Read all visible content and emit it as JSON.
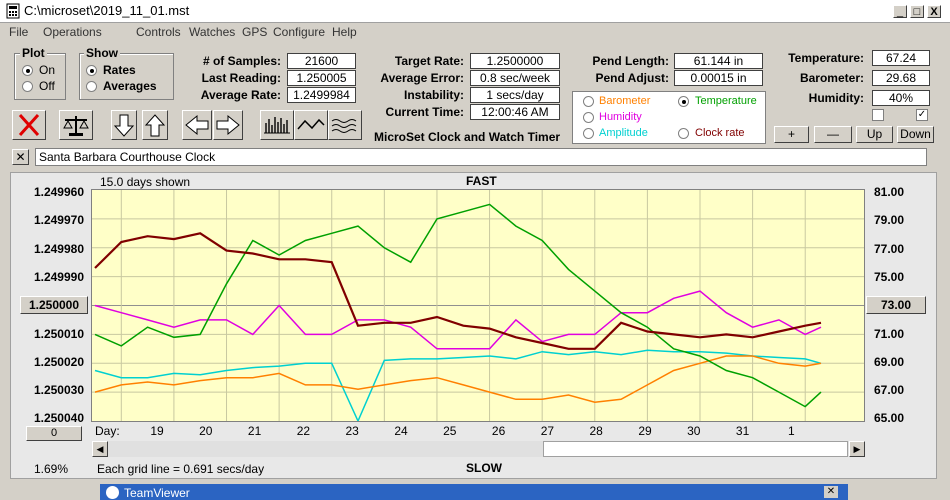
{
  "window": {
    "title": "C:\\microset\\2019_11_01.mst",
    "minimize": "_",
    "maximize": "□",
    "close": "X"
  },
  "menu": [
    "File",
    "Operations",
    "Controls",
    "Watches",
    "GPS",
    "Configure",
    "Help"
  ],
  "plot_group": {
    "title": "Plot",
    "options": [
      "On",
      "Off"
    ],
    "selected": "On"
  },
  "show_group": {
    "title": "Show",
    "options": [
      "Rates",
      "Averages"
    ],
    "selected": "Rates"
  },
  "stats": {
    "samples_label": "# of Samples:",
    "samples": "21600",
    "last_label": "Last Reading:",
    "last": "1.250005",
    "avg_label": "Average Rate:",
    "avg": "1.2499984"
  },
  "target": {
    "target_label": "Target Rate:",
    "target": "1.2500000",
    "error_label": "Average Error:",
    "error": "0.8 sec/week",
    "instab_label": "Instability:",
    "instab": "1 secs/day",
    "time_label": "Current Time:",
    "time": "12:00:46 AM",
    "caption": "MicroSet Clock and Watch Timer"
  },
  "pendulum": {
    "length_label": "Pend Length:",
    "length": "61.144 in",
    "adjust_label": "Pend Adjust:",
    "adjust": "0.00015 in"
  },
  "channels": [
    {
      "name": "Barometer",
      "color": "#ff8000",
      "selected": false
    },
    {
      "name": "Temperature",
      "color": "#00a000",
      "selected": true
    },
    {
      "name": "Humidity",
      "color": "#e000e0",
      "selected": false
    },
    {
      "name": "Amplitude",
      "color": "#00d0d0",
      "selected": false
    },
    {
      "name": "Clock rate",
      "color": "#800000",
      "selected": false
    }
  ],
  "environment": {
    "temp_label": "Temperature:",
    "temp": "67.24",
    "baro_label": "Barometer:",
    "baro": "29.68",
    "hum_label": "Humidity:",
    "hum": "40%",
    "plus": "+",
    "minus": "—",
    "up": "Up",
    "down": "Down",
    "check1": false,
    "check2": true
  },
  "clock_name": "Santa Barbara Courthouse Clock",
  "chart": {
    "days_shown": "15.0 days shown",
    "top_label": "FAST",
    "bottom_label": "SLOW",
    "grid_caption": "Each grid line = 0.691 secs/day",
    "center_value": "1.250000",
    "right_center": "73.00",
    "offset_box": "0",
    "percent": "1.69%",
    "day_prefix": "Day:",
    "left_ticks": [
      "1.249960",
      "1.249970",
      "1.249980",
      "1.249990",
      "1.250000",
      "1.250010",
      "1.250020",
      "1.250030",
      "1.250040"
    ],
    "right_ticks": [
      "81.00",
      "79.00",
      "77.00",
      "75.00",
      "73.00",
      "71.00",
      "69.00",
      "67.00",
      "65.00"
    ],
    "days": [
      "19",
      "20",
      "21",
      "22",
      "23",
      "24",
      "25",
      "26",
      "27",
      "28",
      "29",
      "30",
      "31",
      "1"
    ]
  },
  "chart_data": {
    "type": "line",
    "xlabel": "Day",
    "x": [
      18.5,
      19.0,
      19.5,
      20.0,
      20.5,
      21.0,
      21.5,
      22.0,
      22.5,
      23.0,
      23.5,
      24.0,
      24.5,
      25.0,
      25.5,
      26.0,
      26.5,
      27.0,
      27.5,
      28.0,
      28.5,
      29.0,
      29.5,
      30.0,
      30.5,
      31.0,
      31.5,
      32.0,
      32.3
    ],
    "ylim_left": [
      1.24996,
      1.25004
    ],
    "ylim_right": [
      65,
      81
    ],
    "series": [
      {
        "name": "Clock rate",
        "axis": "left",
        "color": "#800000",
        "values": [
          1.249987,
          1.249978,
          1.249976,
          1.249977,
          1.249975,
          1.249981,
          1.249982,
          1.249984,
          1.249984,
          1.249985,
          1.250007,
          1.250006,
          1.250006,
          1.250004,
          1.250007,
          1.250008,
          1.250011,
          1.250013,
          1.250015,
          1.250015,
          1.250006,
          1.250009,
          1.25001,
          1.250011,
          1.25001,
          1.250011,
          1.250009,
          1.250007,
          1.250006
        ]
      },
      {
        "name": "Temperature",
        "axis": "right",
        "color": "#00a000",
        "values": [
          71.0,
          70.2,
          71.5,
          70.8,
          71.0,
          74.5,
          77.5,
          76.5,
          77.5,
          78.0,
          78.5,
          77.0,
          76.0,
          79.0,
          79.5,
          80.0,
          78.5,
          77.5,
          75.5,
          74.0,
          72.5,
          71.5,
          70.0,
          69.5,
          68.5,
          68.0,
          67.0,
          66.0,
          67.0
        ]
      },
      {
        "name": "Humidity",
        "axis": "right",
        "color": "#e000e0",
        "values": [
          73.0,
          72.5,
          72.0,
          71.5,
          72.0,
          72.0,
          71.0,
          73.0,
          71.0,
          71.0,
          72.0,
          72.0,
          71.5,
          70.0,
          70.0,
          70.0,
          72.0,
          70.5,
          71.0,
          71.0,
          72.5,
          72.5,
          73.5,
          74.0,
          72.5,
          71.5,
          72.0,
          71.0,
          71.5
        ]
      },
      {
        "name": "Amplitude",
        "axis": "right",
        "color": "#00d0d0",
        "values": [
          68.5,
          68.0,
          68.0,
          68.3,
          68.2,
          68.5,
          68.7,
          68.8,
          69.0,
          69.0,
          65.0,
          69.2,
          69.3,
          69.3,
          69.4,
          69.5,
          69.3,
          69.8,
          69.6,
          69.8,
          69.6,
          69.9,
          69.8,
          69.8,
          69.7,
          69.5,
          69.4,
          69.3,
          69.0
        ]
      },
      {
        "name": "Barometer",
        "axis": "right",
        "color": "#ff8000",
        "values": [
          67.0,
          67.5,
          67.7,
          67.5,
          67.8,
          68.0,
          68.0,
          68.3,
          67.5,
          67.5,
          67.2,
          67.5,
          67.8,
          68.0,
          67.5,
          67.0,
          66.5,
          66.5,
          66.8,
          66.3,
          66.5,
          67.5,
          68.5,
          69.0,
          69.5,
          69.5,
          69.0,
          68.8,
          69.0
        ]
      }
    ]
  }
}
